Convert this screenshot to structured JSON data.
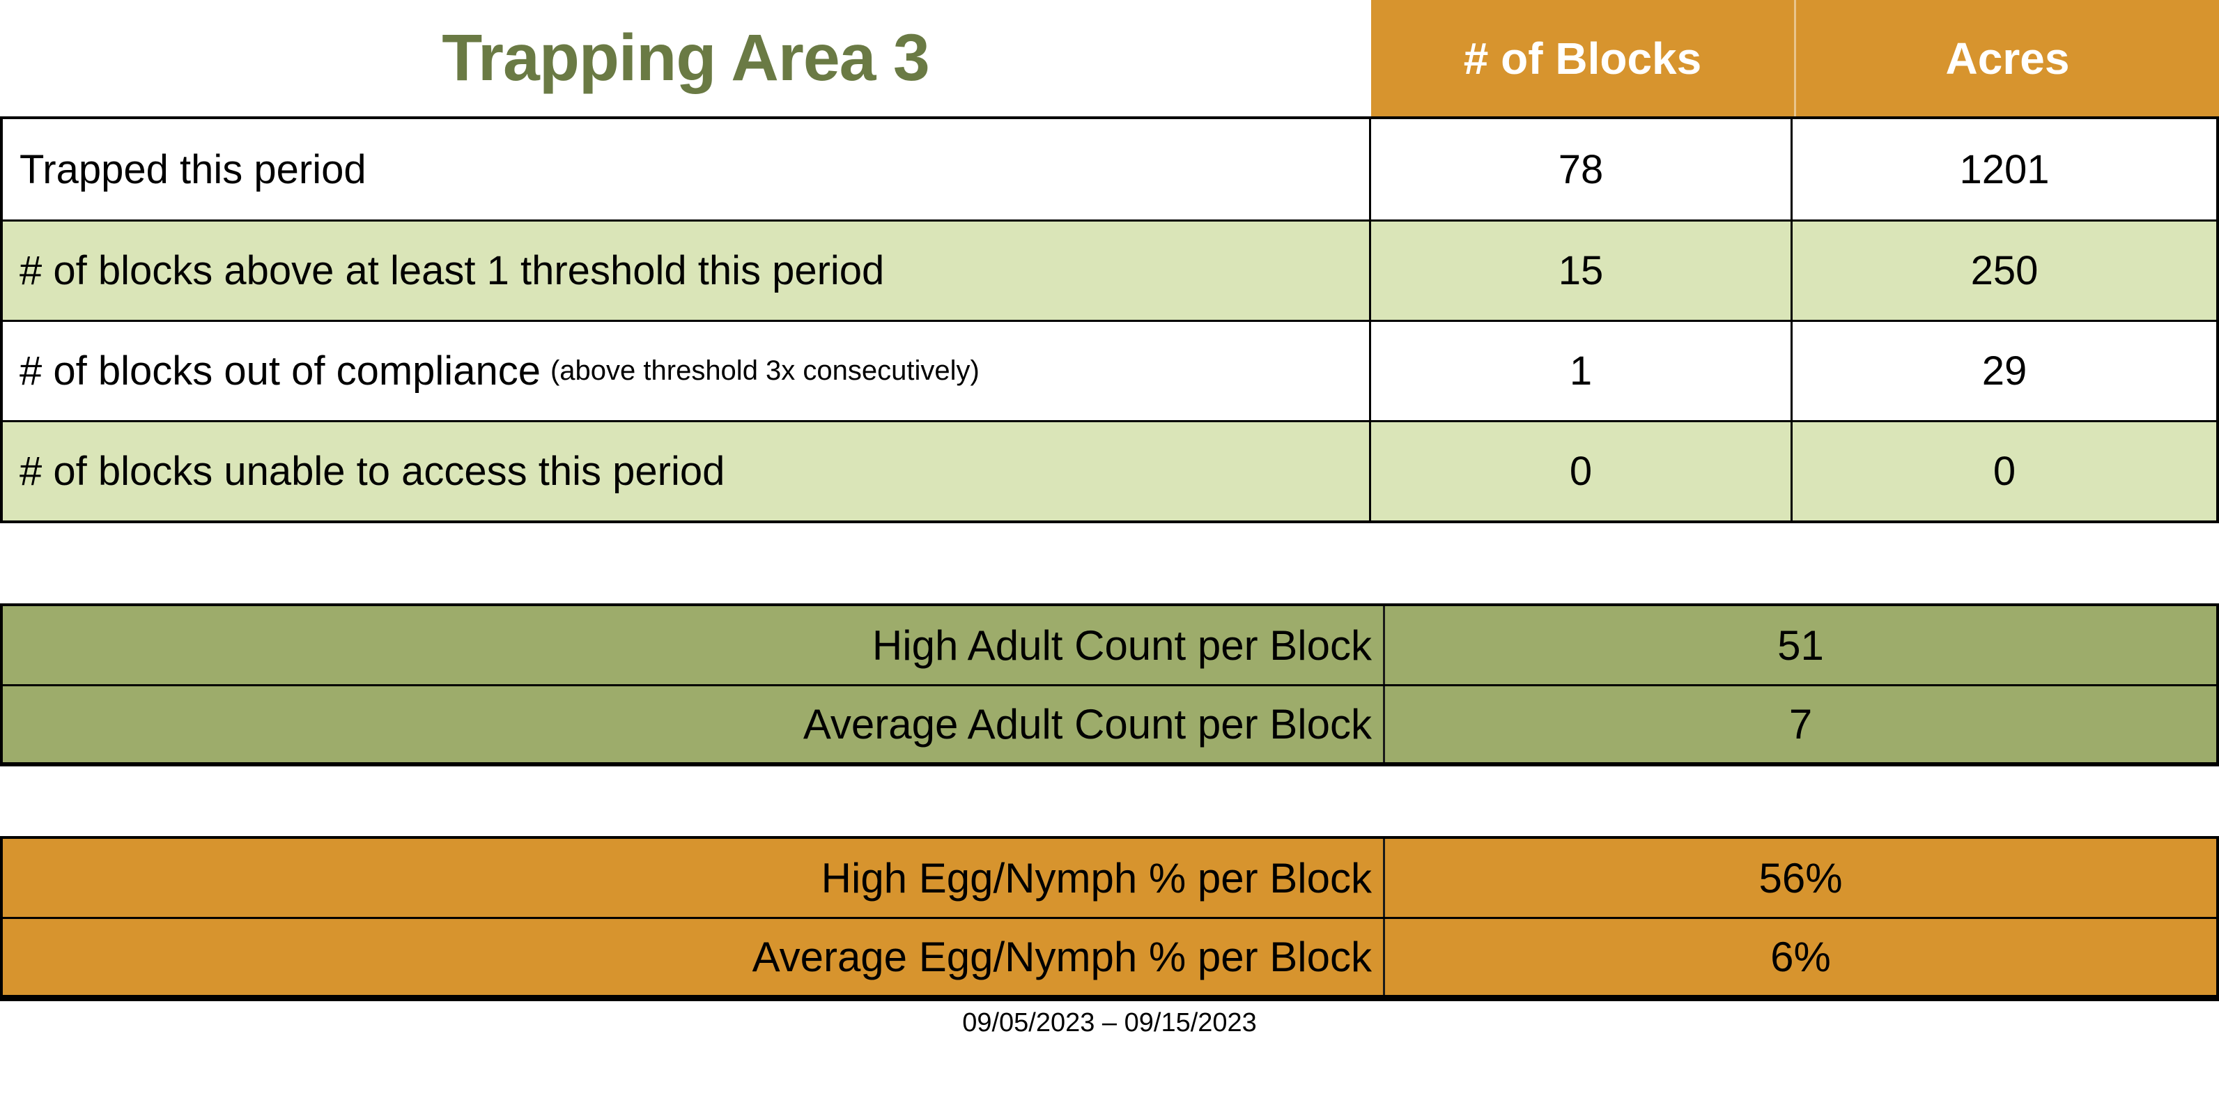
{
  "colors": {
    "orange": "#D7942E",
    "light_green": "#DAE5B8",
    "olive": "#9DAC6B",
    "title_green": "#6A7A44"
  },
  "top_table": {
    "title": "Trapping Area 3",
    "columns": {
      "blocks": "# of Blocks",
      "acres": "Acres"
    },
    "rows": [
      {
        "label": "Trapped this period",
        "blocks": "78",
        "acres": "1201"
      },
      {
        "label": "# of blocks above at least 1 threshold this period",
        "blocks": "15",
        "acres": "250"
      },
      {
        "label": "# of blocks out of compliance",
        "label_note": "(above threshold 3x consecutively)",
        "blocks": "1",
        "acres": "29"
      },
      {
        "label": "# of blocks unable to access this period",
        "blocks": "0",
        "acres": "0"
      }
    ]
  },
  "adult_table": {
    "rows": [
      {
        "label": "High Adult Count per Block",
        "value": "51"
      },
      {
        "label": "Average Adult Count per Block",
        "value": "7"
      }
    ]
  },
  "egg_table": {
    "rows": [
      {
        "label": "High Egg/Nymph % per Block",
        "value": "56%"
      },
      {
        "label": "Average Egg/Nymph % per Block",
        "value": "6%"
      }
    ]
  },
  "footer": {
    "date_range": "09/05/2023 – 09/15/2023"
  }
}
